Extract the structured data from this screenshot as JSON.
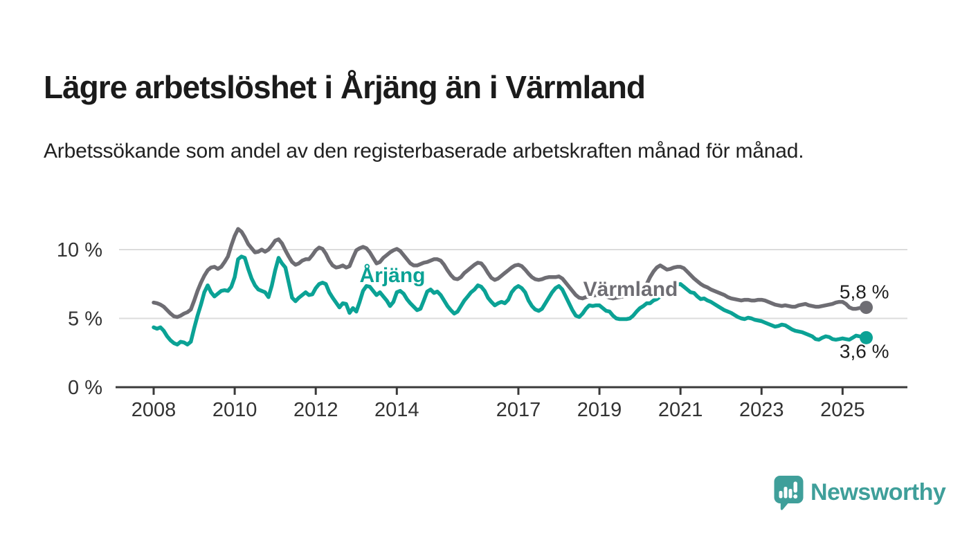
{
  "header": {
    "title": "Lägre arbetslöshet i Årjäng än i Värmland",
    "subtitle": "Arbetssökande som andel av den registerbaserade arbetskraften månad för månad."
  },
  "branding": {
    "logo_text": "Newsworthy",
    "logo_color": "#3f9f9a"
  },
  "colors": {
    "arjang": "#0ba295",
    "varmland": "#6e6d73",
    "grid": "#dcdcdc",
    "axis": "#3a3a3a",
    "tick_text": "#333333",
    "value_text": "#1f1f1f"
  },
  "chart_data": {
    "type": "line",
    "y_unit": "percent of registered labour force",
    "x_unit": "monthly, decimal years",
    "ylim": [
      0,
      12
    ],
    "grid": "horizontal",
    "legend_position": "inline-labels",
    "yticks": [
      {
        "value": 0,
        "label": "0 %"
      },
      {
        "value": 5,
        "label": "5 %"
      },
      {
        "value": 10,
        "label": "10 %"
      }
    ],
    "xticks": [
      {
        "value": 2008,
        "label": "2008"
      },
      {
        "value": 2010,
        "label": "2010"
      },
      {
        "value": 2012,
        "label": "2012"
      },
      {
        "value": 2014,
        "label": "2014"
      },
      {
        "value": 2017,
        "label": "2017"
      },
      {
        "value": 2019,
        "label": "2019"
      },
      {
        "value": 2021,
        "label": "2021"
      },
      {
        "value": 2023,
        "label": "2023"
      },
      {
        "value": 2025,
        "label": "2025"
      }
    ],
    "series": [
      {
        "name": "Värmland",
        "color": "#6e6d73",
        "end_label": "5,8 %",
        "start_year": 2008,
        "frequency": "monthly",
        "values": [
          6.15,
          6.1,
          6.0,
          5.85,
          5.6,
          5.35,
          5.15,
          5.1,
          5.2,
          5.35,
          5.45,
          5.65,
          6.3,
          7.0,
          7.6,
          8.1,
          8.5,
          8.7,
          8.75,
          8.6,
          8.75,
          9.1,
          9.5,
          10.3,
          11.0,
          11.5,
          11.3,
          10.9,
          10.4,
          10.1,
          9.8,
          9.85,
          10.0,
          9.85,
          10.0,
          10.3,
          10.65,
          10.75,
          10.45,
          9.95,
          9.5,
          9.1,
          8.9,
          9.0,
          9.2,
          9.3,
          9.3,
          9.6,
          9.95,
          10.15,
          10.05,
          9.7,
          9.2,
          8.85,
          8.7,
          8.75,
          8.85,
          8.7,
          8.8,
          9.4,
          9.95,
          10.1,
          10.2,
          10.1,
          9.8,
          9.4,
          9.0,
          9.1,
          9.4,
          9.6,
          9.8,
          9.95,
          10.05,
          9.9,
          9.6,
          9.3,
          9.0,
          8.85,
          8.85,
          8.95,
          9.05,
          9.1,
          9.2,
          9.3,
          9.3,
          9.2,
          8.9,
          8.5,
          8.15,
          7.9,
          7.85,
          8.0,
          8.3,
          8.5,
          8.7,
          8.9,
          9.05,
          9.0,
          8.7,
          8.3,
          7.95,
          7.8,
          7.9,
          8.1,
          8.3,
          8.5,
          8.7,
          8.85,
          8.9,
          8.8,
          8.55,
          8.25,
          8.0,
          7.85,
          7.8,
          7.85,
          7.95,
          8.0,
          8.0,
          8.0,
          8.05,
          7.9,
          7.6,
          7.3,
          7.0,
          6.7,
          6.5,
          6.45,
          6.55,
          6.6,
          6.65,
          6.7,
          6.75,
          6.7,
          6.6,
          6.5,
          6.45,
          6.5,
          6.55,
          6.6,
          6.7,
          6.8,
          6.85,
          6.95,
          7.0,
          7.1,
          7.5,
          8.0,
          8.4,
          8.7,
          8.85,
          8.7,
          8.55,
          8.6,
          8.7,
          8.75,
          8.75,
          8.65,
          8.4,
          8.15,
          7.9,
          7.7,
          7.5,
          7.35,
          7.25,
          7.1,
          7.0,
          6.9,
          6.8,
          6.7,
          6.55,
          6.45,
          6.4,
          6.35,
          6.3,
          6.35,
          6.35,
          6.3,
          6.3,
          6.35,
          6.35,
          6.3,
          6.2,
          6.1,
          6.0,
          5.95,
          5.9,
          5.95,
          5.9,
          5.85,
          5.85,
          5.95,
          6.0,
          6.05,
          5.95,
          5.9,
          5.85,
          5.85,
          5.9,
          5.95,
          6.0,
          6.05,
          6.15,
          6.2,
          6.2,
          6.05,
          5.8,
          5.7,
          5.7,
          5.75,
          5.8,
          5.8
        ]
      },
      {
        "name": "Årjäng",
        "color": "#0ba295",
        "end_label": "3,6 %",
        "start_year": 2008,
        "frequency": "monthly",
        "values": [
          4.35,
          4.25,
          4.35,
          4.1,
          3.7,
          3.4,
          3.2,
          3.1,
          3.3,
          3.25,
          3.1,
          3.3,
          4.3,
          5.2,
          6.0,
          6.9,
          7.4,
          6.9,
          6.6,
          6.8,
          7.0,
          7.05,
          7.0,
          7.3,
          8.0,
          9.3,
          9.5,
          9.4,
          8.6,
          7.9,
          7.4,
          7.1,
          7.0,
          6.9,
          6.55,
          7.4,
          8.5,
          9.4,
          9.0,
          8.7,
          7.6,
          6.5,
          6.25,
          6.5,
          6.7,
          6.9,
          6.7,
          6.75,
          7.2,
          7.5,
          7.6,
          7.5,
          6.9,
          6.5,
          6.15,
          5.8,
          6.1,
          6.05,
          5.4,
          5.75,
          5.5,
          6.2,
          7.0,
          7.35,
          7.3,
          7.0,
          6.7,
          6.9,
          6.6,
          6.3,
          5.9,
          6.2,
          6.9,
          7.0,
          6.8,
          6.4,
          6.1,
          5.85,
          5.6,
          5.7,
          6.3,
          6.95,
          7.1,
          6.85,
          6.95,
          6.7,
          6.3,
          5.9,
          5.6,
          5.35,
          5.5,
          5.9,
          6.3,
          6.6,
          6.9,
          7.1,
          7.4,
          7.3,
          7.0,
          6.5,
          6.2,
          5.95,
          6.1,
          6.2,
          6.1,
          6.35,
          6.9,
          7.2,
          7.35,
          7.2,
          6.9,
          6.3,
          5.9,
          5.65,
          5.55,
          5.7,
          6.1,
          6.5,
          6.9,
          7.2,
          7.35,
          7.1,
          6.6,
          6.1,
          5.6,
          5.2,
          5.1,
          5.35,
          5.7,
          5.95,
          5.9,
          5.95,
          5.95,
          5.75,
          5.55,
          5.5,
          5.2,
          5.0,
          4.95,
          4.95,
          4.95,
          5.0,
          5.2,
          5.5,
          5.75,
          5.9,
          6.1,
          6.1,
          6.3,
          6.4,
          6.6,
          6.7,
          6.9,
          7.1,
          7.3,
          7.45,
          7.5,
          7.3,
          7.1,
          6.9,
          6.85,
          6.6,
          6.4,
          6.45,
          6.3,
          6.2,
          6.05,
          5.9,
          5.75,
          5.6,
          5.5,
          5.4,
          5.25,
          5.1,
          5.0,
          4.95,
          5.05,
          5.0,
          4.9,
          4.85,
          4.8,
          4.7,
          4.6,
          4.5,
          4.4,
          4.45,
          4.55,
          4.5,
          4.35,
          4.2,
          4.1,
          4.05,
          4.0,
          3.9,
          3.8,
          3.7,
          3.5,
          3.45,
          3.6,
          3.7,
          3.65,
          3.5,
          3.45,
          3.5,
          3.55,
          3.5,
          3.45,
          3.6,
          3.75,
          3.7,
          3.65,
          3.6
        ]
      }
    ]
  }
}
